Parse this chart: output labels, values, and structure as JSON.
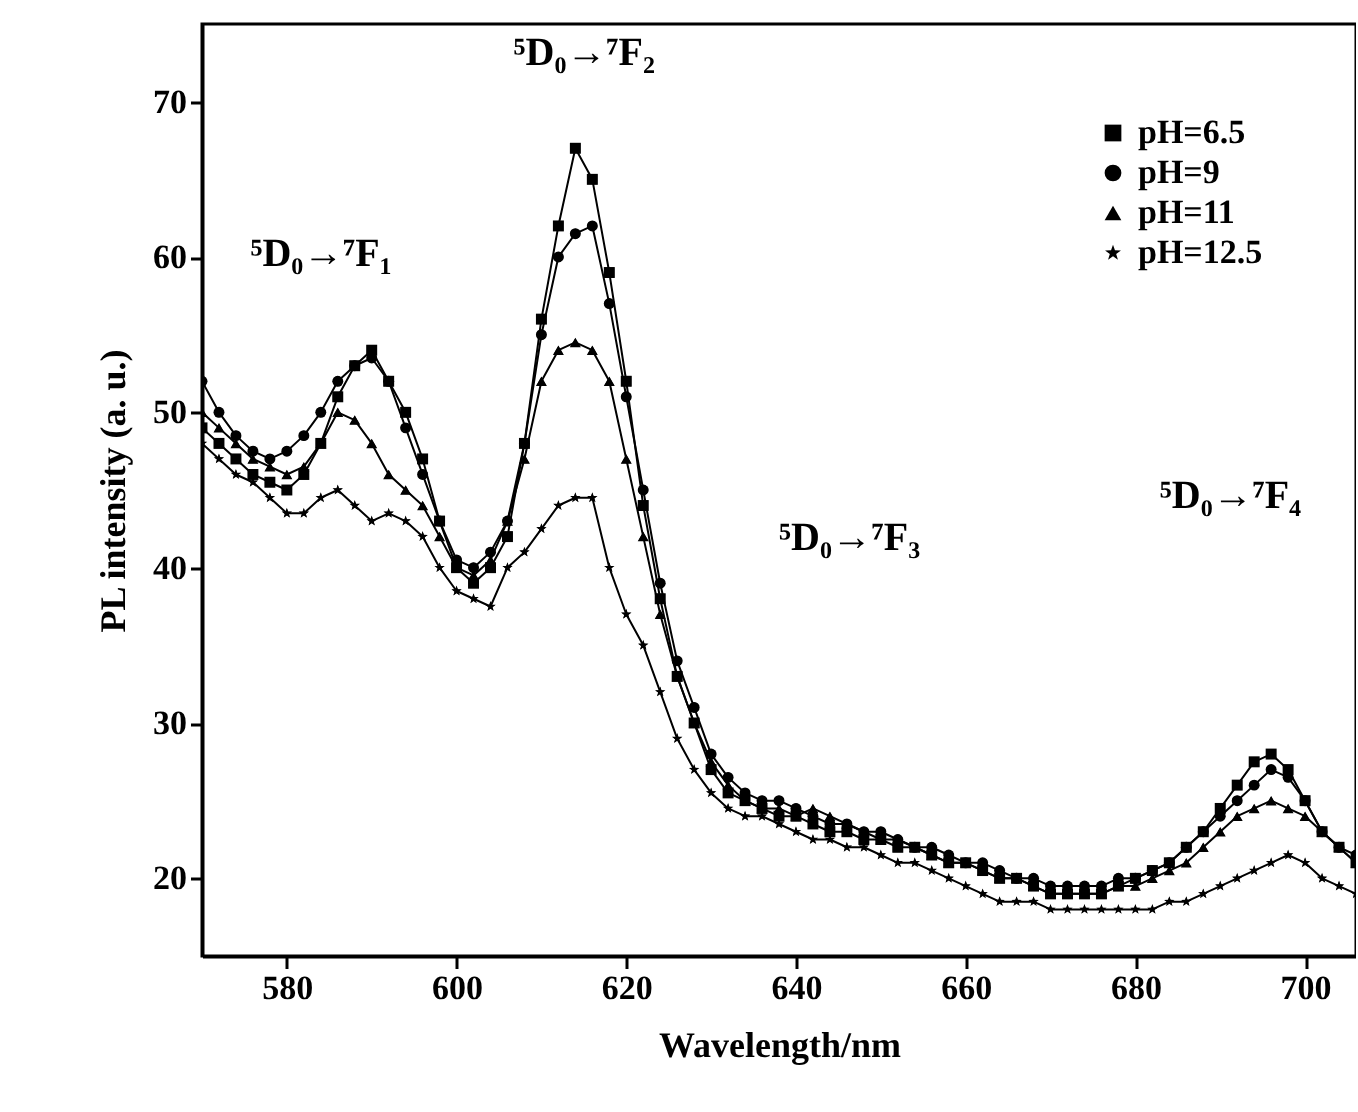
{
  "chart_data": {
    "type": "line",
    "xlabel": "Wavelength/nm",
    "ylabel": "PL intensity (a. u.)",
    "x": [
      570,
      572,
      574,
      576,
      578,
      580,
      582,
      584,
      586,
      588,
      590,
      592,
      594,
      596,
      598,
      600,
      602,
      604,
      606,
      608,
      610,
      612,
      614,
      616,
      618,
      620,
      622,
      624,
      626,
      628,
      630,
      632,
      634,
      636,
      638,
      640,
      642,
      644,
      646,
      648,
      650,
      652,
      654,
      656,
      658,
      660,
      662,
      664,
      666,
      668,
      670,
      672,
      674,
      676,
      678,
      680,
      682,
      684,
      686,
      688,
      690,
      692,
      694,
      696,
      698,
      700,
      702,
      704,
      706
    ],
    "series": [
      {
        "name": "pH=6.5",
        "color": "#000000",
        "marker": "square",
        "values": [
          49,
          48,
          47,
          46,
          45.5,
          45,
          46,
          48,
          51,
          53,
          54,
          52,
          50,
          47,
          43,
          40,
          39,
          40,
          42,
          48,
          56,
          62,
          67,
          65,
          59,
          52,
          44,
          38,
          33,
          30,
          27,
          25.5,
          25,
          24.5,
          24,
          24,
          23.5,
          23,
          23,
          22.5,
          22.5,
          22,
          22,
          21.5,
          21,
          21,
          20.5,
          20,
          20,
          19.5,
          19,
          19,
          19,
          19,
          19.5,
          20,
          20.5,
          21,
          22,
          23,
          24.5,
          26,
          27.5,
          28,
          27,
          25,
          23,
          22,
          21
        ]
      },
      {
        "name": "pH=9",
        "color": "#000000",
        "marker": "circle",
        "values": [
          52,
          50,
          48.5,
          47.5,
          47,
          47.5,
          48.5,
          50,
          52,
          53,
          53.5,
          52,
          49,
          46,
          43,
          40.5,
          40,
          41,
          43,
          48,
          55,
          60,
          61.5,
          62,
          57,
          51,
          45,
          39,
          34,
          31,
          28,
          26.5,
          25.5,
          25,
          25,
          24.5,
          24,
          23.5,
          23.5,
          23,
          23,
          22.5,
          22,
          22,
          21.5,
          21,
          21,
          20.5,
          20,
          20,
          19.5,
          19.5,
          19.5,
          19.5,
          20,
          20,
          20.5,
          21,
          22,
          23,
          24,
          25,
          26,
          27,
          26.5,
          25,
          23,
          22,
          21.5
        ]
      },
      {
        "name": "pH=11",
        "color": "#000000",
        "marker": "triangle",
        "values": [
          50,
          49,
          48,
          47,
          46.5,
          46,
          46.5,
          48,
          50,
          49.5,
          48,
          46,
          45,
          44,
          42,
          40,
          39.5,
          40.5,
          43,
          47,
          52,
          54,
          54.5,
          54,
          52,
          47,
          42,
          37,
          33,
          30,
          27.5,
          26,
          25,
          24.5,
          24.5,
          24,
          24.5,
          24,
          23.5,
          23,
          22.5,
          22.5,
          22,
          21.5,
          21,
          21,
          20.5,
          20,
          20,
          19.5,
          19,
          19,
          19,
          19,
          19.5,
          19.5,
          20,
          20.5,
          21,
          22,
          23,
          24,
          24.5,
          25,
          24.5,
          24,
          23,
          22,
          21
        ]
      },
      {
        "name": "pH=12.5",
        "color": "#000000",
        "marker": "star",
        "values": [
          48,
          47,
          46,
          45.5,
          44.5,
          43.5,
          43.5,
          44.5,
          45,
          44,
          43,
          43.5,
          43,
          42,
          40,
          38.5,
          38,
          37.5,
          40,
          41,
          42.5,
          44,
          44.5,
          44.5,
          40,
          37,
          35,
          32,
          29,
          27,
          25.5,
          24.5,
          24,
          24,
          23.5,
          23,
          22.5,
          22.5,
          22,
          22,
          21.5,
          21,
          21,
          20.5,
          20,
          19.5,
          19,
          18.5,
          18.5,
          18.5,
          18,
          18,
          18,
          18,
          18,
          18,
          18,
          18.5,
          18.5,
          19,
          19.5,
          20,
          20.5,
          21,
          21.5,
          21,
          20,
          19.5,
          19
        ]
      }
    ],
    "annotations": [
      "⁵D₀→⁷F₁",
      "⁵D₀→⁷F₂",
      "⁵D₀→⁷F₃",
      "⁵D₀→⁷F₄"
    ],
    "xlim": [
      570,
      706
    ],
    "xticks": [
      580,
      600,
      620,
      640,
      660,
      680,
      700
    ],
    "ylim": [
      15,
      75
    ],
    "yticks": [
      20,
      30,
      40,
      50,
      60,
      70
    ],
    "grid": false,
    "legend": "top right",
    "line_style": "solid"
  }
}
